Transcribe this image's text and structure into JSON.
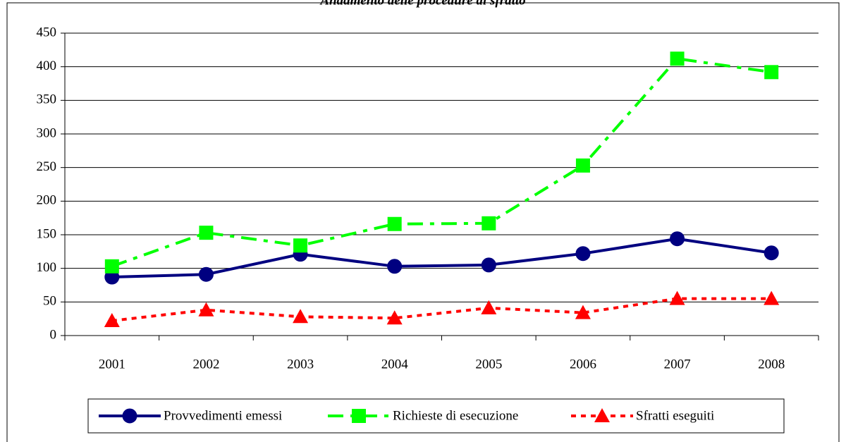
{
  "chart_data": {
    "type": "line",
    "title": "Andamento delle procedure di sfratto",
    "categories": [
      "2001",
      "2002",
      "2003",
      "2004",
      "2005",
      "2006",
      "2007",
      "2008"
    ],
    "series": [
      {
        "name": "Provvedimenti emessi",
        "color": "#000080",
        "marker": "circle",
        "line_style": "solid",
        "values": [
          87,
          91,
          121,
          103,
          105,
          122,
          144,
          123
        ]
      },
      {
        "name": "Richieste di esecuzione",
        "color": "#00ff00",
        "marker": "square",
        "line_style": "dashdot",
        "values": [
          103,
          153,
          134,
          166,
          167,
          253,
          412,
          392
        ]
      },
      {
        "name": "Sfratti eseguiti",
        "color": "#ff0000",
        "marker": "triangle",
        "line_style": "dotted",
        "values": [
          22,
          38,
          28,
          26,
          41,
          34,
          55,
          55
        ]
      }
    ],
    "ylim": [
      0,
      450
    ],
    "yticks": [
      0,
      50,
      100,
      150,
      200,
      250,
      300,
      350,
      400,
      450
    ],
    "grid": true,
    "legend": "bottom"
  }
}
